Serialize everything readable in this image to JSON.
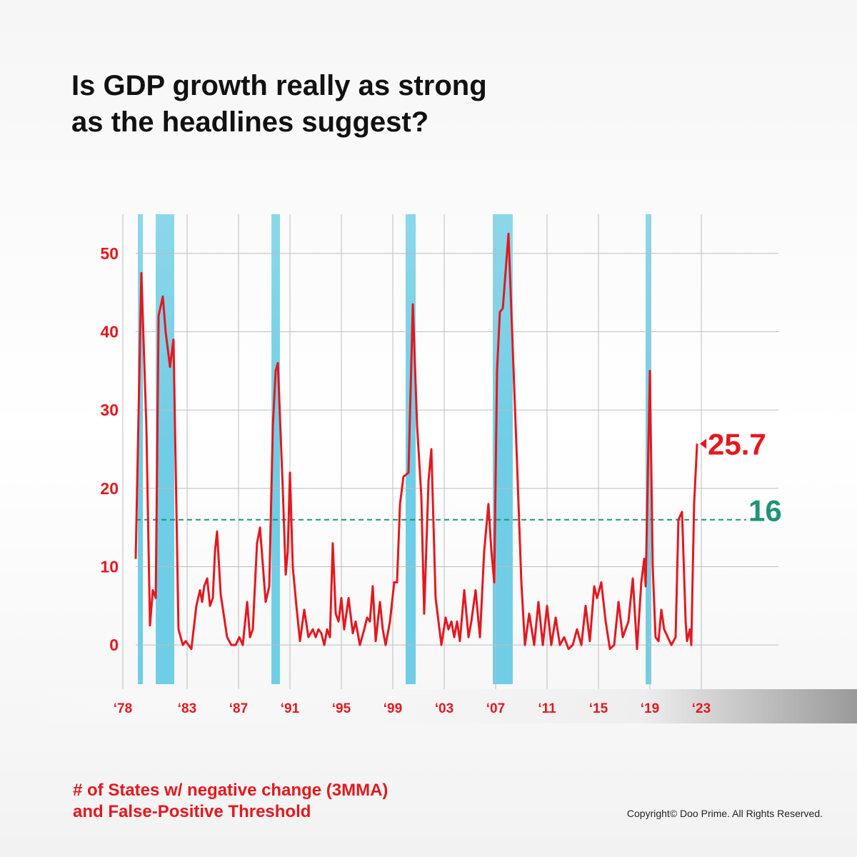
{
  "chart_data": {
    "type": "line",
    "title": [
      "Is GDP growth really as strong",
      "as the headlines suggest?"
    ],
    "subtitle": [
      "# of States w/ negative change (3MMA)",
      "and False-Positive Threshold"
    ],
    "copyright": "Copyright© Doo Prime. All Rights Reserved.",
    "x": [
      1979.0,
      1979.44,
      1979.83,
      1980.11,
      1980.33,
      1980.56,
      1980.78,
      1981.11,
      1981.33,
      1981.67,
      1981.94,
      1982.33,
      1982.67,
      1982.89,
      1983.33,
      1983.72,
      1984.0,
      1984.17,
      1984.33,
      1984.56,
      1984.78,
      1985.0,
      1985.17,
      1985.33,
      1985.61,
      1986.11,
      1986.44,
      1986.78,
      1987.06,
      1987.33,
      1987.67,
      1987.89,
      1988.11,
      1988.44,
      1988.67,
      1989.11,
      1989.39,
      1989.67,
      1989.89,
      1990.06,
      1990.44,
      1990.67,
      1990.83,
      1991.0,
      1991.22,
      1991.5,
      1991.78,
      1992.11,
      1992.44,
      1992.78,
      1993.0,
      1993.22,
      1993.44,
      1993.67,
      1993.89,
      1994.11,
      1994.33,
      1994.56,
      1994.78,
      1995.0,
      1995.22,
      1995.56,
      1995.89,
      1996.11,
      1996.44,
      1996.78,
      1997.0,
      1997.22,
      1997.44,
      1997.67,
      1998.0,
      1998.22,
      1998.44,
      1998.78,
      1999.11,
      1999.33,
      1999.56,
      1999.83,
      2000.22,
      2000.56,
      2000.89,
      2001.22,
      2001.44,
      2001.78,
      2002.0,
      2002.33,
      2002.78,
      2003.11,
      2003.33,
      2003.56,
      2003.78,
      2004.0,
      2004.22,
      2004.56,
      2004.89,
      2005.11,
      2005.44,
      2005.78,
      2006.11,
      2006.44,
      2006.67,
      2006.89,
      2007.11,
      2007.33,
      2007.56,
      2008.0,
      2008.33,
      2008.67,
      2009.0,
      2009.28,
      2009.61,
      2010.0,
      2010.33,
      2010.67,
      2011.0,
      2011.33,
      2011.67,
      2012.0,
      2012.33,
      2012.67,
      2013.0,
      2013.33,
      2013.67,
      2014.0,
      2014.33,
      2014.67,
      2014.89,
      2015.22,
      2015.56,
      2015.89,
      2016.22,
      2016.56,
      2016.89,
      2017.33,
      2017.67,
      2018.0,
      2018.33,
      2018.56,
      2018.67,
      2019.0,
      2019.22,
      2019.44,
      2019.67,
      2019.89,
      2020.11,
      2020.67,
      2021.0,
      2021.22,
      2021.5,
      2021.78,
      2021.89,
      2022.11,
      2022.22,
      2022.44,
      2022.67
    ],
    "series": [
      {
        "color": "#e3181f",
        "values": [
          11,
          47.5,
          28,
          2.5,
          7,
          6,
          42,
          44.5,
          40,
          35.5,
          39,
          2,
          0,
          0.5,
          -0.5,
          5,
          7,
          5.5,
          7.5,
          8.5,
          5,
          6,
          12,
          14.5,
          6.5,
          1,
          0,
          0,
          1,
          0,
          5.5,
          1,
          2,
          13,
          15,
          5.5,
          7.5,
          28,
          35,
          36,
          20,
          9,
          12,
          22,
          10,
          5,
          0.5,
          4.5,
          1,
          2,
          1,
          2,
          1.5,
          0,
          2,
          1,
          13,
          4,
          3,
          6,
          2,
          6,
          1.5,
          3,
          0,
          2,
          3.5,
          3,
          7.5,
          0.5,
          5.5,
          2,
          0,
          3,
          8,
          8,
          18,
          21.5,
          22,
          43.5,
          28,
          19,
          4,
          21,
          25,
          6,
          0,
          3.5,
          2,
          3,
          1,
          3,
          0.5,
          7,
          1,
          3,
          7,
          1,
          12,
          18,
          12,
          8,
          35,
          42.5,
          43,
          52.5,
          38,
          23,
          8,
          0,
          4,
          0,
          5.5,
          0,
          5,
          0,
          3.5,
          0,
          1,
          -0.5,
          0,
          2,
          0,
          5,
          0.5,
          7.5,
          6,
          8,
          3,
          -0.5,
          0,
          5.5,
          1,
          3,
          8.5,
          -0.5,
          8,
          11,
          7.5,
          35,
          10,
          1,
          0.5,
          4.5,
          2,
          0,
          1,
          16,
          17,
          3,
          0.5,
          2,
          0,
          18,
          25.7
        ]
      }
    ],
    "end_label": 25.7,
    "threshold": 16,
    "threshold_color": "#1f9378",
    "recessions": [
      [
        1979.17,
        1979.56
      ],
      [
        1980.56,
        1982.0
      ],
      [
        1989.56,
        1990.22
      ],
      [
        2000.0,
        2000.78
      ],
      [
        2006.78,
        2008.33
      ],
      [
        2018.67,
        2019.11
      ]
    ],
    "recession_color": "#6fcde5",
    "xlim": [
      1978,
      2029
    ],
    "xticks": [
      {
        "value": 1978,
        "label": "‘78"
      },
      {
        "value": 1983,
        "label": "‘83"
      },
      {
        "value": 1987,
        "label": "‘87"
      },
      {
        "value": 1991,
        "label": "‘91"
      },
      {
        "value": 1995,
        "label": "‘95"
      },
      {
        "value": 1999,
        "label": "‘99"
      },
      {
        "value": 2003,
        "label": "‘03"
      },
      {
        "value": 2007,
        "label": "‘07"
      },
      {
        "value": 2011,
        "label": "‘11"
      },
      {
        "value": 2015,
        "label": "‘15"
      },
      {
        "value": 2019,
        "label": "‘19"
      },
      {
        "value": 2023,
        "label": "‘23"
      }
    ],
    "ylim": [
      -5,
      55
    ],
    "yticks": [
      0,
      10,
      20,
      30,
      40,
      50
    ],
    "grid": true
  }
}
